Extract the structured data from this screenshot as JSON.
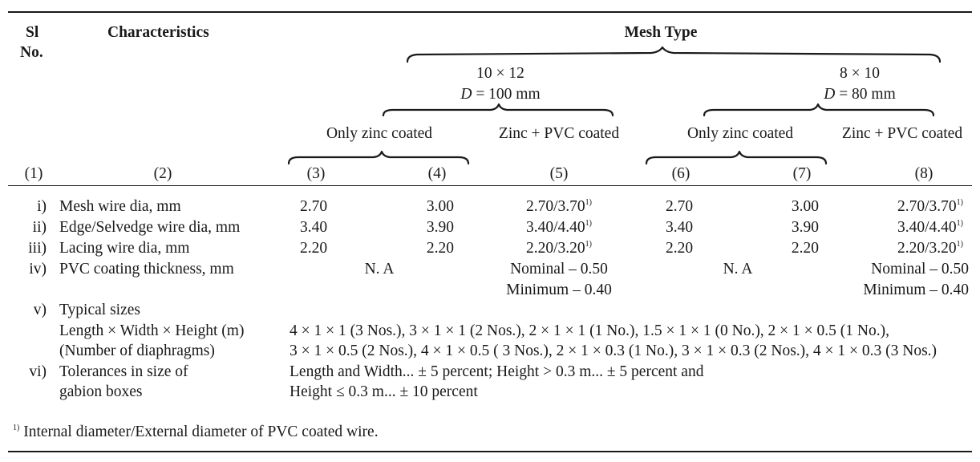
{
  "header": {
    "sl_no_line1": "Sl",
    "sl_no_line2": "No.",
    "characteristics": "Characteristics",
    "mesh_type": "Mesh Type",
    "mesh_a": {
      "size": "10 × 12",
      "d_symbol": "D",
      "d_value": " = 100 mm"
    },
    "mesh_b": {
      "size": "8 × 10",
      "d_symbol": "D",
      "d_value": " = 80 mm"
    },
    "coat_zinc_a": "Only zinc coated",
    "coat_pvc_a": "Zinc + PVC coated",
    "coat_zinc_b": "Only zinc coated",
    "coat_pvc_b": "Zinc + PVC coated",
    "col_numbers": [
      "(1)",
      "(2)",
      "(3)",
      "(4)",
      "(5)",
      "(6)",
      "(7)",
      "(8)"
    ]
  },
  "rows": [
    {
      "sl": "i)",
      "label": "Mesh wire dia, mm",
      "c3": "2.70",
      "c4": "3.00",
      "c5": "2.70/3.70",
      "c6": "2.70",
      "c7": "3.00",
      "c8": "2.70/3.70"
    },
    {
      "sl": "ii)",
      "label": "Edge/Selvedge wire dia, mm",
      "c3": "3.40",
      "c4": "3.90",
      "c5": "3.40/4.40",
      "c6": "3.40",
      "c7": "3.90",
      "c8": "3.40/4.40"
    },
    {
      "sl": "iii)",
      "label": "Lacing wire dia, mm",
      "c3": "2.20",
      "c4": "2.20",
      "c5": "2.20/3.20",
      "c6": "2.20",
      "c7": "2.20",
      "c8": "2.20/3.20"
    }
  ],
  "footnote_mark": "1)",
  "pvc_row": {
    "sl": "iv)",
    "label": "PVC coating thickness, mm",
    "na_a": "N. A",
    "nominal_a": "Nominal – 0.50",
    "minimum_a": "Minimum – 0.40",
    "na_b": "N. A",
    "nominal_b": "Nominal – 0.50",
    "minimum_b": "Minimum – 0.40"
  },
  "sizes_row": {
    "sl": "v)",
    "label_1": "Typical sizes",
    "label_2": "Length × Width × Height (m)",
    "label_3": "(Number of diaphragms)",
    "line_1": "4 × 1 × 1 (3 Nos.), 3 × 1 × 1 (2 Nos.), 2 × 1 × 1 (1 No.), 1.5 × 1 × 1 (0 No.), 2 × 1 ×  0.5 (1 No.),",
    "line_2": "3 × 1 × 0.5 (2 Nos.), 4 × 1 × 0.5 ( 3 Nos.), 2 × 1 × 0.3 (1 No.), 3 × 1 × 0.3 (2 Nos.), 4 × 1 × 0.3 (3 Nos.)"
  },
  "tolerance_row": {
    "sl": "vi)",
    "label_1": "Tolerances in size of",
    "label_2": "gabion boxes",
    "line_1": "Length and Width... ± 5 percent; Height > 0.3 m... ± 5 percent and",
    "line_2": "Height ≤ 0.3 m... ± 10 percent"
  },
  "footnote": {
    "mark": "1)",
    "text": " Internal diameter/External diameter of PVC coated wire."
  }
}
